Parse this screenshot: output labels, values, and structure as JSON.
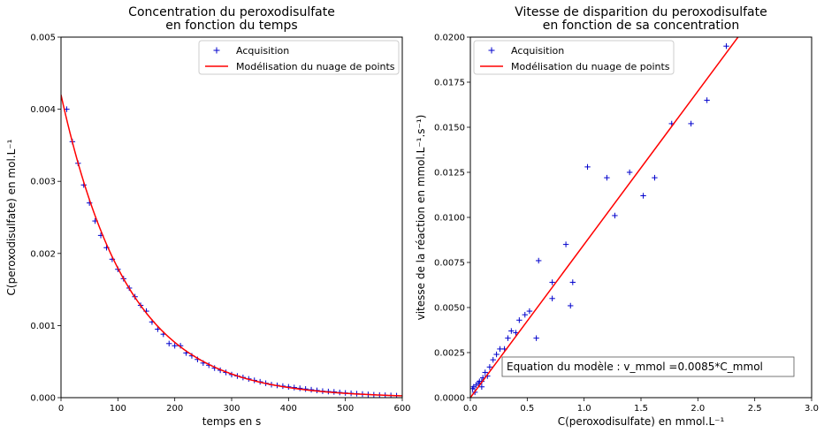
{
  "chart_data": [
    {
      "type": "scatter",
      "title": [
        "Concentration du peroxodisulfate",
        "en fonction du temps"
      ],
      "xlabel": "temps en s",
      "ylabel": "C(peroxodisulfate) en mol.L⁻¹",
      "xlim": [
        0,
        600
      ],
      "ylim": [
        0,
        0.005
      ],
      "xticks": [
        0,
        100,
        200,
        300,
        400,
        500,
        600
      ],
      "yticks": [
        0.0,
        0.001,
        0.002,
        0.003,
        0.004,
        0.005
      ],
      "xtick_labels": [
        "0",
        "100",
        "200",
        "300",
        "400",
        "500",
        "600"
      ],
      "ytick_labels": [
        "0.000",
        "0.001",
        "0.002",
        "0.003",
        "0.004",
        "0.005"
      ],
      "grid": false,
      "legend_position": "top-right",
      "series": [
        {
          "name": "Acquisition",
          "kind": "scatter",
          "marker": "+",
          "color": "#0000cc",
          "x": [
            10,
            20,
            30,
            40,
            50,
            60,
            70,
            80,
            90,
            100,
            110,
            120,
            130,
            140,
            150,
            160,
            170,
            180,
            190,
            200,
            210,
            220,
            230,
            240,
            250,
            260,
            270,
            280,
            290,
            300,
            310,
            320,
            330,
            340,
            350,
            360,
            370,
            380,
            390,
            400,
            410,
            420,
            430,
            440,
            450,
            460,
            470,
            480,
            490,
            500,
            510,
            520,
            530,
            540,
            550,
            560,
            570,
            580,
            590
          ],
          "y": [
            0.004,
            0.00355,
            0.00325,
            0.00295,
            0.0027,
            0.00245,
            0.00225,
            0.00208,
            0.00192,
            0.00178,
            0.00165,
            0.00152,
            0.0014,
            0.00128,
            0.0012,
            0.00105,
            0.00095,
            0.00088,
            0.00075,
            0.00072,
            0.00072,
            0.00062,
            0.00058,
            0.00053,
            0.00048,
            0.00045,
            0.00041,
            0.00038,
            0.00035,
            0.00032,
            0.0003,
            0.00028,
            0.00026,
            0.00024,
            0.00022,
            0.0002,
            0.00018,
            0.00017,
            0.00016,
            0.00015,
            0.00014,
            0.00013,
            0.00012,
            0.00011,
            0.0001,
            9e-05,
            8.5e-05,
            8e-05,
            7.2e-05,
            6.5e-05,
            6e-05,
            5.5e-05,
            5e-05,
            4.5e-05,
            4e-05,
            3.6e-05,
            3.3e-05,
            3e-05,
            2.7e-05
          ]
        },
        {
          "name": "Modélisation du nuage de points",
          "kind": "line",
          "color": "#ff0000",
          "model": "exponential",
          "y0": 0.0042,
          "k": 0.0085
        }
      ]
    },
    {
      "type": "scatter",
      "title": [
        "Vitesse de disparition du peroxodisulfate",
        "en fonction de sa concentration"
      ],
      "xlabel": "C(peroxodisulfate) en mmol.L⁻¹",
      "ylabel": "vitesse de la réaction en mmol.L⁻¹.s⁻¹)",
      "xlim": [
        0,
        3.0
      ],
      "ylim": [
        0,
        0.02
      ],
      "xticks": [
        0,
        0.5,
        1.0,
        1.5,
        2.0,
        2.5,
        3.0
      ],
      "yticks": [
        0,
        0.0025,
        0.005,
        0.0075,
        0.01,
        0.0125,
        0.015,
        0.0175,
        0.02
      ],
      "xtick_labels": [
        "0.0",
        "0.5",
        "1.0",
        "1.5",
        "2.0",
        "2.5",
        "3.0"
      ],
      "ytick_labels": [
        "0.0000",
        "0.0025",
        "0.0050",
        "0.0075",
        "0.0100",
        "0.0125",
        "0.0150",
        "0.0175",
        "0.0200"
      ],
      "grid": false,
      "legend_position": "top-left",
      "annotation": "Equation du modèle : v_mmol =0.0085*C_mmol",
      "series": [
        {
          "name": "Acquisition",
          "kind": "scatter",
          "marker": "+",
          "color": "#0000cc",
          "x": [
            0.02,
            0.03,
            0.04,
            0.05,
            0.07,
            0.08,
            0.1,
            0.1,
            0.11,
            0.13,
            0.15,
            0.17,
            0.2,
            0.23,
            0.26,
            0.3,
            0.33,
            0.36,
            0.4,
            0.43,
            0.48,
            0.52,
            0.58,
            0.6,
            0.72,
            0.72,
            0.84,
            0.88,
            0.9,
            1.03,
            1.2,
            1.27,
            1.4,
            1.52,
            1.62,
            1.77,
            1.94,
            2.08,
            2.25
          ],
          "y": [
            0.0005,
            0.0006,
            0.0003,
            0.0007,
            0.0008,
            0.0009,
            0.0009,
            0.0006,
            0.0011,
            0.0014,
            0.0012,
            0.0017,
            0.0021,
            0.0024,
            0.0027,
            0.0027,
            0.0033,
            0.0037,
            0.0036,
            0.0043,
            0.0046,
            0.0048,
            0.0033,
            0.0076,
            0.0055,
            0.0064,
            0.0085,
            0.0051,
            0.0064,
            0.0128,
            0.0122,
            0.0101,
            0.0125,
            0.0112,
            0.0122,
            0.0152,
            0.0152,
            0.0165,
            0.0195
          ]
        },
        {
          "name": "Modélisation du nuage de points",
          "kind": "line",
          "color": "#ff0000",
          "model": "linear",
          "slope": 0.0085,
          "x_range": [
            0,
            2.4
          ]
        }
      ]
    }
  ]
}
